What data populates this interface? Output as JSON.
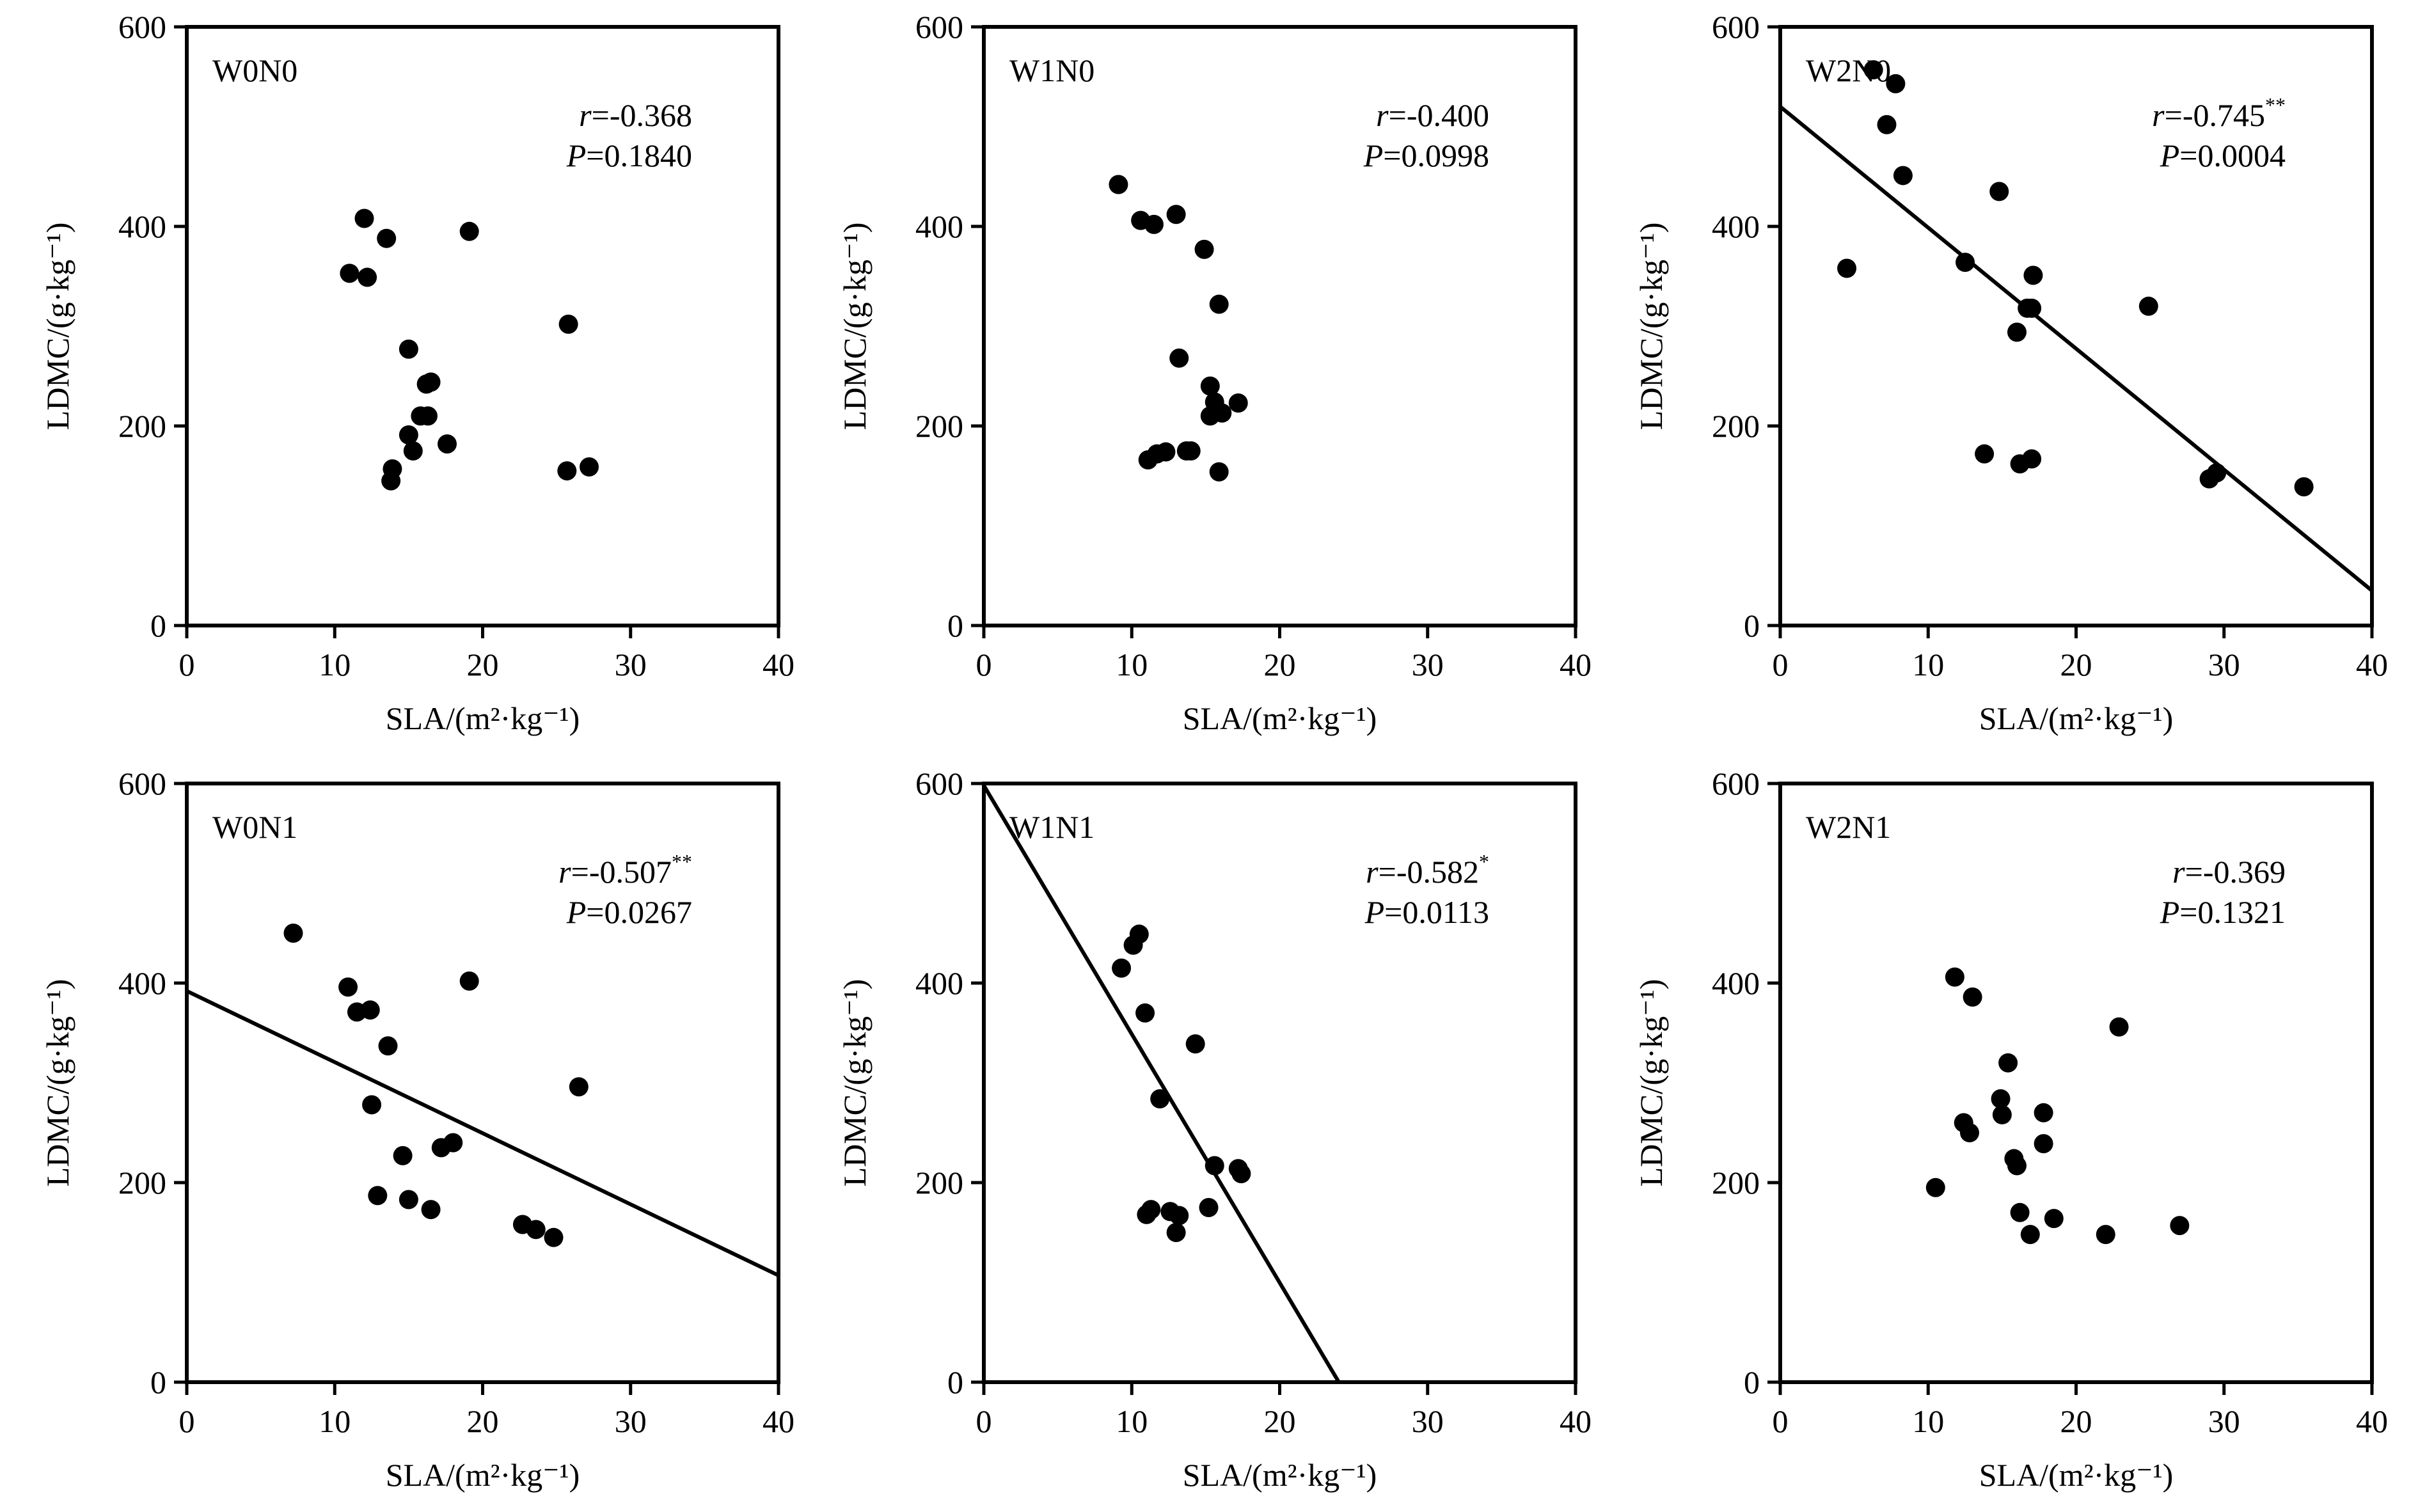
{
  "chart_data": [
    {
      "type": "scatter",
      "panel_label": "W0N0",
      "xlabel": "SLA/(m²·kg⁻¹)",
      "ylabel": "LDMC/(g·kg⁻¹)",
      "xlim": [
        0,
        40
      ],
      "ylim": [
        0,
        600
      ],
      "x_ticks": [
        0,
        10,
        20,
        30,
        40
      ],
      "y_ticks": [
        0,
        200,
        400,
        600
      ],
      "stats": {
        "r_prefix": "r",
        "r_value": "=-0.368",
        "r_sig": "",
        "p_prefix": "P",
        "p_value": "=0.1840"
      },
      "fit_line": null,
      "points": [
        [
          11.0,
          353
        ],
        [
          12.0,
          408
        ],
        [
          12.2,
          349
        ],
        [
          13.5,
          388
        ],
        [
          13.8,
          145
        ],
        [
          13.9,
          157
        ],
        [
          15.0,
          277
        ],
        [
          15.0,
          191
        ],
        [
          15.3,
          175
        ],
        [
          15.8,
          210
        ],
        [
          16.2,
          242
        ],
        [
          16.3,
          210
        ],
        [
          16.5,
          244
        ],
        [
          17.6,
          182
        ],
        [
          19.1,
          395
        ],
        [
          25.7,
          155
        ],
        [
          25.8,
          302
        ],
        [
          27.2,
          159
        ]
      ]
    },
    {
      "type": "scatter",
      "panel_label": "W1N0",
      "xlabel": "SLA/(m²·kg⁻¹)",
      "ylabel": "LDMC/(g·kg⁻¹)",
      "xlim": [
        0,
        40
      ],
      "ylim": [
        0,
        600
      ],
      "x_ticks": [
        0,
        10,
        20,
        30,
        40
      ],
      "y_ticks": [
        0,
        200,
        400,
        600
      ],
      "stats": {
        "r_prefix": "r",
        "r_value": "=-0.400",
        "r_sig": "",
        "p_prefix": "P",
        "p_value": "=0.0998"
      },
      "fit_line": null,
      "points": [
        [
          9.1,
          442
        ],
        [
          10.6,
          406
        ],
        [
          11.1,
          166
        ],
        [
          11.5,
          402
        ],
        [
          11.7,
          172
        ],
        [
          12.3,
          174
        ],
        [
          13.0,
          412
        ],
        [
          13.2,
          268
        ],
        [
          13.7,
          175
        ],
        [
          14.0,
          175
        ],
        [
          14.9,
          377
        ],
        [
          15.3,
          240
        ],
        [
          15.3,
          210
        ],
        [
          15.6,
          224
        ],
        [
          15.9,
          154
        ],
        [
          15.9,
          322
        ],
        [
          16.1,
          213
        ],
        [
          17.2,
          223
        ]
      ]
    },
    {
      "type": "scatter",
      "panel_label": "W2N0",
      "xlabel": "SLA/(m²·kg⁻¹)",
      "ylabel": "LDMC/(g·kg⁻¹)",
      "xlim": [
        0,
        40
      ],
      "ylim": [
        0,
        600
      ],
      "x_ticks": [
        0,
        10,
        20,
        30,
        40
      ],
      "y_ticks": [
        0,
        200,
        400,
        600
      ],
      "stats": {
        "r_prefix": "r",
        "r_value": "=-0.745",
        "r_sig": "**",
        "p_prefix": "P",
        "p_value": "=0.0004"
      },
      "fit_line": {
        "x": [
          0,
          40
        ],
        "y": [
          520,
          35
        ]
      },
      "points": [
        [
          4.5,
          358
        ],
        [
          6.3,
          557
        ],
        [
          7.2,
          502
        ],
        [
          7.8,
          543
        ],
        [
          8.3,
          451
        ],
        [
          12.5,
          364
        ],
        [
          13.8,
          172
        ],
        [
          14.8,
          435
        ],
        [
          16.0,
          294
        ],
        [
          16.2,
          162
        ],
        [
          16.7,
          318
        ],
        [
          17.0,
          167
        ],
        [
          17.0,
          318
        ],
        [
          17.1,
          351
        ],
        [
          24.9,
          320
        ],
        [
          29.0,
          147
        ],
        [
          29.5,
          153
        ],
        [
          35.4,
          139
        ]
      ]
    },
    {
      "type": "scatter",
      "panel_label": "W0N1",
      "xlabel": "SLA/(m²·kg⁻¹)",
      "ylabel": "LDMC/(g·kg⁻¹)",
      "xlim": [
        0,
        40
      ],
      "ylim": [
        0,
        600
      ],
      "x_ticks": [
        0,
        10,
        20,
        30,
        40
      ],
      "y_ticks": [
        0,
        200,
        400,
        600
      ],
      "stats": {
        "r_prefix": "r",
        "r_value": "=-0.507",
        "r_sig": "**",
        "p_prefix": "P",
        "p_value": "=0.0267"
      },
      "fit_line": {
        "x": [
          0,
          40
        ],
        "y": [
          392,
          107
        ]
      },
      "points": [
        [
          7.2,
          450
        ],
        [
          10.9,
          396
        ],
        [
          11.5,
          371
        ],
        [
          12.4,
          373
        ],
        [
          12.5,
          278
        ],
        [
          12.9,
          187
        ],
        [
          13.6,
          337
        ],
        [
          14.6,
          227
        ],
        [
          15.0,
          183
        ],
        [
          16.5,
          173
        ],
        [
          17.2,
          235
        ],
        [
          18.0,
          240
        ],
        [
          19.1,
          402
        ],
        [
          22.7,
          158
        ],
        [
          23.6,
          153
        ],
        [
          24.8,
          145
        ],
        [
          26.5,
          296
        ]
      ]
    },
    {
      "type": "scatter",
      "panel_label": "W1N1",
      "xlabel": "SLA/(m²·kg⁻¹)",
      "ylabel": "LDMC/(g·kg⁻¹)",
      "xlim": [
        0,
        40
      ],
      "ylim": [
        0,
        600
      ],
      "x_ticks": [
        0,
        10,
        20,
        30,
        40
      ],
      "y_ticks": [
        0,
        200,
        400,
        600
      ],
      "stats": {
        "r_prefix": "r",
        "r_value": "=-0.582",
        "r_sig": "*",
        "p_prefix": "P",
        "p_value": "=0.0113"
      },
      "fit_line": {
        "x": [
          0,
          24
        ],
        "y": [
          598,
          0
        ]
      },
      "points": [
        [
          9.3,
          415
        ],
        [
          10.1,
          438
        ],
        [
          10.5,
          449
        ],
        [
          10.9,
          370
        ],
        [
          11.0,
          168
        ],
        [
          11.3,
          173
        ],
        [
          11.9,
          284
        ],
        [
          12.6,
          171
        ],
        [
          13.0,
          150
        ],
        [
          13.2,
          167
        ],
        [
          14.3,
          339
        ],
        [
          15.2,
          175
        ],
        [
          15.6,
          217
        ],
        [
          17.2,
          214
        ],
        [
          17.4,
          209
        ]
      ]
    },
    {
      "type": "scatter",
      "panel_label": "W2N1",
      "xlabel": "SLA/(m²·kg⁻¹)",
      "ylabel": "LDMC/(g·kg⁻¹)",
      "xlim": [
        0,
        40
      ],
      "ylim": [
        0,
        600
      ],
      "x_ticks": [
        0,
        10,
        20,
        30,
        40
      ],
      "y_ticks": [
        0,
        200,
        400,
        600
      ],
      "stats": {
        "r_prefix": "r",
        "r_value": "=-0.369",
        "r_sig": "",
        "p_prefix": "P",
        "p_value": "=0.1321"
      },
      "fit_line": null,
      "points": [
        [
          10.5,
          195
        ],
        [
          11.8,
          406
        ],
        [
          12.4,
          260
        ],
        [
          12.8,
          250
        ],
        [
          13.0,
          386
        ],
        [
          14.9,
          284
        ],
        [
          15.0,
          268
        ],
        [
          15.4,
          320
        ],
        [
          15.8,
          224
        ],
        [
          16.0,
          217
        ],
        [
          16.2,
          170
        ],
        [
          16.9,
          148
        ],
        [
          17.8,
          270
        ],
        [
          17.8,
          239
        ],
        [
          18.5,
          164
        ],
        [
          22.0,
          148
        ],
        [
          22.9,
          356
        ],
        [
          27.0,
          157
        ]
      ]
    }
  ]
}
